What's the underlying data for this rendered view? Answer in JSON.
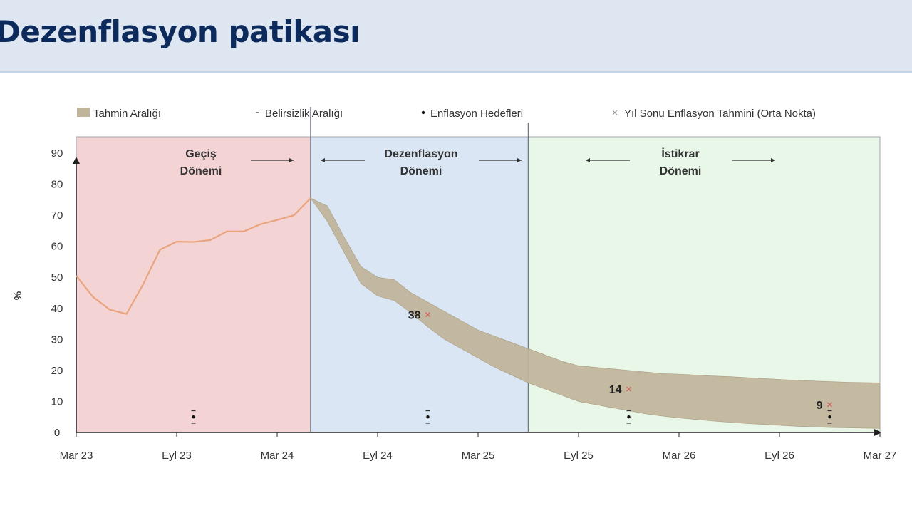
{
  "header": {
    "title": "Dezenflasyon patikası"
  },
  "colors": {
    "header_bg": "#dde6f1",
    "title": "#0d2a5c",
    "transition_bg": "#f4d3d5",
    "disinflation_bg": "#dbe6f4",
    "stability_bg": "#e9f7e8",
    "line": "#e8a47c",
    "band": "#c0b49a",
    "marker_x": "#d0605a"
  },
  "legend": [
    {
      "label": "Tahmin Aralığı",
      "icon": "band-swatch-icon"
    },
    {
      "label": "Belirsizlik Aralığı",
      "icon": "dash-icon"
    },
    {
      "label": "Enflasyon Hedefleri",
      "icon": "dot-icon"
    },
    {
      "label": "Yıl Sonu Enflasyon Tahmini (Orta Nokta)",
      "icon": "x-marker-icon"
    }
  ],
  "periods": [
    {
      "line1": "Geçiş",
      "line2": "Dönemi"
    },
    {
      "line1": "Dezenflasyon",
      "line2": "Dönemi"
    },
    {
      "line1": "İstikrar",
      "line2": "Dönemi"
    }
  ],
  "chart_data": {
    "type": "area",
    "ylabel": "%",
    "ylim": [
      0,
      90
    ],
    "yticks": [
      0,
      10,
      20,
      30,
      40,
      50,
      60,
      70,
      80,
      90
    ],
    "xlim": [
      0,
      48
    ],
    "xticks": [
      {
        "label": "Mar 23",
        "m": 0
      },
      {
        "label": "Eyl 23",
        "m": 6
      },
      {
        "label": "Mar 24",
        "m": 12
      },
      {
        "label": "Eyl 24",
        "m": 18
      },
      {
        "label": "Mar 25",
        "m": 24
      },
      {
        "label": "Eyl 25",
        "m": 30
      },
      {
        "label": "Mar 26",
        "m": 36
      },
      {
        "label": "Eyl 26",
        "m": 42
      },
      {
        "label": "Mar 27",
        "m": 48
      }
    ],
    "period_bounds": [
      0,
      14,
      27,
      48
    ],
    "actual": {
      "name": "Actual inflation",
      "x": [
        0,
        1,
        2,
        3,
        4,
        5,
        6,
        7,
        8,
        9,
        10,
        11,
        12,
        13,
        14
      ],
      "y": [
        50.5,
        43.7,
        39.6,
        38.2,
        47.8,
        58.9,
        61.5,
        61.4,
        62.0,
        64.8,
        64.8,
        67.1,
        68.5,
        70.0,
        75.5
      ]
    },
    "band": {
      "name": "Tahmin Aralığı",
      "x": [
        14,
        15,
        16,
        17,
        18,
        19,
        20,
        21,
        22,
        23,
        24,
        25,
        26,
        27,
        28,
        29,
        30,
        31,
        32,
        33,
        34,
        35,
        36,
        37,
        38,
        39,
        40,
        41,
        42,
        43,
        44,
        45,
        46,
        47,
        48
      ],
      "upper": [
        75.5,
        73.0,
        63.0,
        53.5,
        50.0,
        49.2,
        45.0,
        42.0,
        39.0,
        36.0,
        33.0,
        31.0,
        29.0,
        27.0,
        25.0,
        23.0,
        21.5,
        21.0,
        20.5,
        20.0,
        19.5,
        19.0,
        18.8,
        18.5,
        18.2,
        18.0,
        17.7,
        17.4,
        17.1,
        16.8,
        16.6,
        16.4,
        16.2,
        16.1,
        16.0
      ],
      "lower": [
        75.5,
        68.0,
        58.0,
        48.0,
        44.0,
        42.5,
        38.5,
        34.0,
        30.0,
        27.0,
        24.0,
        21.0,
        18.5,
        16.0,
        14.0,
        12.0,
        10.0,
        9.0,
        8.0,
        7.0,
        6.0,
        5.3,
        4.7,
        4.2,
        3.7,
        3.3,
        2.9,
        2.6,
        2.3,
        2.0,
        1.8,
        1.6,
        1.5,
        1.4,
        1.3
      ]
    },
    "year_end_forecasts": [
      {
        "x": 21,
        "y": 38,
        "label": "38"
      },
      {
        "x": 33,
        "y": 14,
        "label": "14"
      },
      {
        "x": 45,
        "y": 9,
        "label": "9"
      }
    ],
    "targets": [
      {
        "x": 7,
        "y": 5,
        "unc_low": 3,
        "unc_high": 7
      },
      {
        "x": 21,
        "y": 5,
        "unc_low": 3,
        "unc_high": 7
      },
      {
        "x": 33,
        "y": 5,
        "unc_low": 3,
        "unc_high": 7
      },
      {
        "x": 45,
        "y": 5,
        "unc_low": 3,
        "unc_high": 7
      }
    ]
  }
}
